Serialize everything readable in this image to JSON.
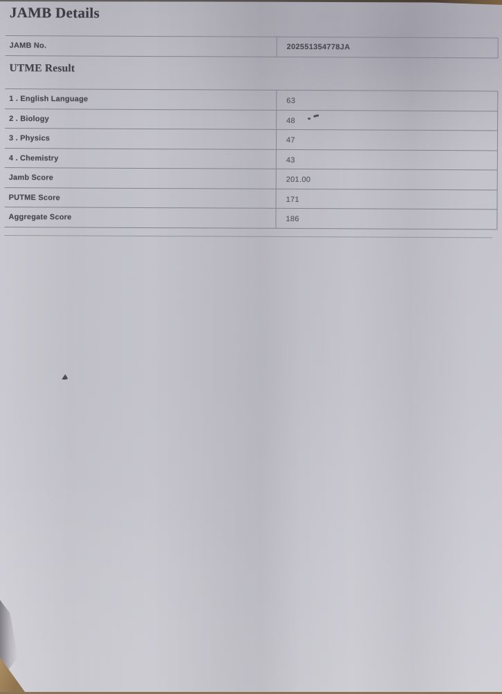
{
  "page": {
    "title": "JAMB Details"
  },
  "jamb_no": {
    "label": "JAMB No.",
    "value": "202551354778JA"
  },
  "utme": {
    "heading": "UTME Result",
    "rows": [
      {
        "label": "1 . English Language",
        "value": "63"
      },
      {
        "label": "2 . Biology",
        "value": "48"
      },
      {
        "label": "3 . Physics",
        "value": "47"
      },
      {
        "label": "4 . Chemistry",
        "value": "43"
      },
      {
        "label": "Jamb Score",
        "value": "201.00"
      },
      {
        "label": "PUTME Score",
        "value": "171"
      },
      {
        "label": "Aggregate Score",
        "value": "186"
      }
    ]
  },
  "colors": {
    "paper": "#c8c7cf",
    "table_line": "#83838d",
    "label_text": "#47464e",
    "value_text": "#55545c",
    "desk_corner_tan": "#ab8d62",
    "photo_edge_dark": "#302a22"
  }
}
